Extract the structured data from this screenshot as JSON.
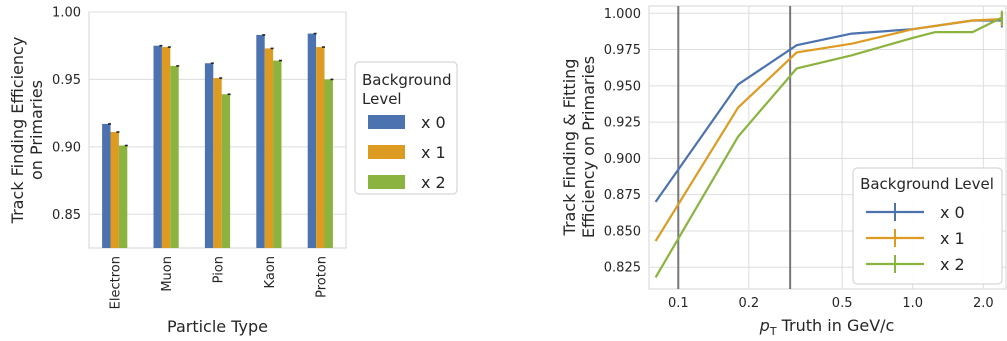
{
  "chart_data": [
    {
      "type": "bar",
      "title": "",
      "xlabel": "Particle Type",
      "ylabel_lines": [
        "Track Finding Efficiency",
        "on Primaries"
      ],
      "categories": [
        "Electron",
        "Muon",
        "Pion",
        "Kaon",
        "Proton"
      ],
      "ylim": [
        0.825,
        1.0
      ],
      "yticks": [
        0.85,
        0.9,
        0.95,
        1.0
      ],
      "ytick_labels": [
        "0.85",
        "0.90",
        "0.95",
        "1.00"
      ],
      "grid": true,
      "legend": {
        "title_lines": [
          "Background",
          "Level"
        ],
        "placement": "right outside",
        "entries": [
          "x 0",
          "x 1",
          "x 2"
        ]
      },
      "series": [
        {
          "name": "x 0",
          "color": "#4c72b0",
          "values": [
            0.917,
            0.975,
            0.962,
            0.983,
            0.984
          ]
        },
        {
          "name": "x 1",
          "color": "#dd9b22",
          "values": [
            0.911,
            0.974,
            0.951,
            0.973,
            0.974
          ]
        },
        {
          "name": "x 2",
          "color": "#8ab43f",
          "values": [
            0.901,
            0.96,
            0.939,
            0.964,
            0.95
          ]
        }
      ]
    },
    {
      "type": "line",
      "title": "",
      "xlabel_main": "p",
      "xlabel_sub": "T",
      "xlabel_rest": " Truth in GeV/c",
      "ylabel_lines": [
        "Track Finding & Fitting",
        "Efficiency on Primaries"
      ],
      "xscale": "log",
      "xlim": [
        0.075,
        2.5
      ],
      "ylim": [
        0.81,
        1.005
      ],
      "xticks": [
        0.1,
        0.2,
        0.5,
        1.0,
        2.0
      ],
      "xtick_labels": [
        "0.1",
        "0.2",
        "0.5",
        "1.0",
        "2.0"
      ],
      "yticks": [
        0.825,
        0.85,
        0.875,
        0.9,
        0.925,
        0.95,
        0.975,
        1.0
      ],
      "ytick_labels": [
        "0.825",
        "0.850",
        "0.875",
        "0.900",
        "0.925",
        "0.950",
        "0.975",
        "1.000"
      ],
      "vlines": [
        0.1,
        0.3
      ],
      "grid": true,
      "legend": {
        "title": "Background Level",
        "placement": "lower right",
        "entries": [
          "x 0",
          "x 1",
          "x 2"
        ]
      },
      "series": [
        {
          "name": "x 0",
          "color": "#4c72b0",
          "x": [
            0.08,
            0.18,
            0.32,
            0.55,
            1.0,
            1.8,
            2.4
          ],
          "y": [
            0.87,
            0.951,
            0.978,
            0.986,
            0.989,
            0.995,
            0.995
          ]
        },
        {
          "name": "x 1",
          "color": "#dd9b22",
          "x": [
            0.08,
            0.18,
            0.32,
            0.55,
            1.0,
            1.8,
            2.4
          ],
          "y": [
            0.843,
            0.935,
            0.973,
            0.979,
            0.989,
            0.995,
            0.996
          ]
        },
        {
          "name": "x 2",
          "color": "#8ab43f",
          "x": [
            0.08,
            0.18,
            0.32,
            0.55,
            1.0,
            1.25,
            1.8,
            2.4
          ],
          "y": [
            0.818,
            0.915,
            0.962,
            0.971,
            0.983,
            0.987,
            0.987,
            0.997
          ]
        }
      ]
    }
  ]
}
